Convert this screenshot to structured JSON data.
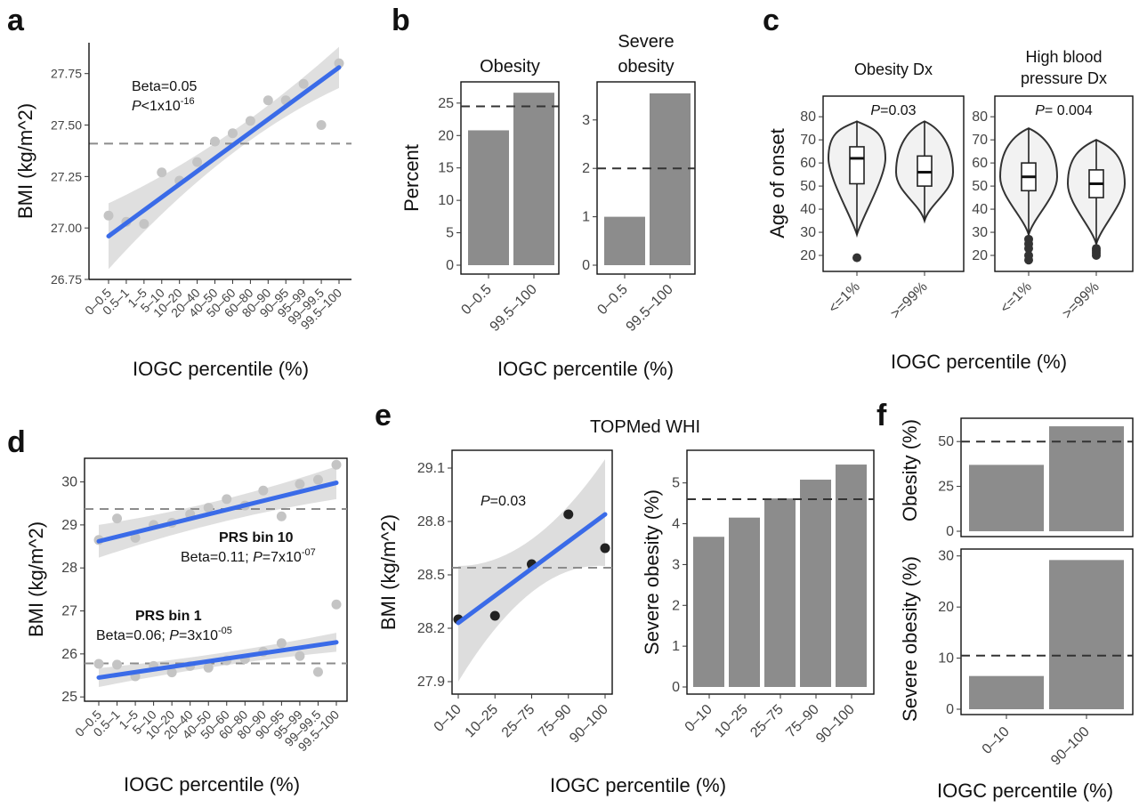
{
  "figure": {
    "panels": [
      "a",
      "b",
      "c",
      "d",
      "e",
      "f"
    ],
    "e_title": "TOPMed WHI",
    "xlabel": "IOGC percentile (%)"
  },
  "chart_data": [
    {
      "panel": "a",
      "type": "scatter",
      "xlabel": "IOGC percentile (%)",
      "ylabel": "BMI (kg/m^2)",
      "categories": [
        "0–0.5",
        "0.5–1",
        "1–5",
        "5–10",
        "10–20",
        "20–40",
        "40–50",
        "50–60",
        "60–80",
        "80–90",
        "90–95",
        "95–99",
        "99–99.5",
        "99.5–100"
      ],
      "values": [
        27.06,
        27.03,
        27.02,
        27.27,
        27.23,
        27.32,
        27.42,
        27.46,
        27.52,
        27.62,
        27.62,
        27.7,
        27.5,
        27.8
      ],
      "fit": [
        26.96,
        27.78
      ],
      "reference_line": 27.41,
      "ylim": [
        26.75,
        27.9
      ],
      "yticks": [
        26.75,
        27.0,
        27.25,
        27.5,
        27.75
      ],
      "annotation": {
        "beta": "Beta=0.05",
        "p_label": "P",
        "p_rest": "<1x10",
        "p_exp": "-16"
      }
    },
    {
      "panel": "b",
      "type": "bar",
      "ylabel": "Percent",
      "xlabel": "IOGC percentile (%)",
      "facets": [
        {
          "title": [
            "Obesity"
          ],
          "categories": [
            "0–0.5",
            "99.5–100"
          ],
          "values": [
            20.8,
            26.6
          ],
          "reference_line": 24.5,
          "ylim": [
            0,
            28
          ],
          "yticks": [
            0,
            5,
            10,
            15,
            20,
            25
          ]
        },
        {
          "title": [
            "Severe",
            "obesity"
          ],
          "categories": [
            "0–0.5",
            "99.5–100"
          ],
          "values": [
            1.0,
            3.55
          ],
          "reference_line": 2.0,
          "ylim": [
            0,
            3.75
          ],
          "yticks": [
            0,
            1,
            2,
            3
          ]
        }
      ]
    },
    {
      "panel": "c",
      "type": "violin",
      "ylabel": "Age of onset",
      "xlabel": "IOGC percentile (%)",
      "ylim": [
        15,
        87
      ],
      "yticks": [
        20,
        30,
        40,
        50,
        60,
        70,
        80
      ],
      "facets": [
        {
          "title": [
            "Obesity Dx"
          ],
          "p_label": "P",
          "p_value": "=0.03",
          "categories": [
            "<=1%",
            ">=99%"
          ],
          "groups": [
            {
              "q1": 51,
              "median": 62,
              "q3": 67,
              "whisker_low": 29,
              "whisker_high": 78,
              "outliers": [
                19
              ]
            },
            {
              "q1": 50,
              "median": 56,
              "q3": 63,
              "whisker_low": 35,
              "whisker_high": 78,
              "outliers": []
            }
          ]
        },
        {
          "title": [
            "High blood",
            "pressure Dx"
          ],
          "p_label": "P",
          "p_value": "= 0.004",
          "categories": [
            "<=1%",
            ">=99%"
          ],
          "groups": [
            {
              "q1": 48,
              "median": 54,
              "q3": 60,
              "whisker_low": 29,
              "whisker_high": 75,
              "outliers": [
                27,
                25,
                23,
                20,
                18
              ]
            },
            {
              "q1": 45,
              "median": 51,
              "q3": 57,
              "whisker_low": 25,
              "whisker_high": 70,
              "outliers": [
                23,
                22,
                21,
                20
              ]
            }
          ]
        }
      ]
    },
    {
      "panel": "d",
      "type": "scatter",
      "xlabel": "IOGC percentile (%)",
      "ylabel": "BMI (kg/m^2)",
      "categories": [
        "0–0.5",
        "0.5–1",
        "1–5",
        "5–10",
        "10–20",
        "20–40",
        "40–50",
        "50–60",
        "60–80",
        "80–90",
        "90–95",
        "95–99",
        "99–99.5",
        "99.5–100"
      ],
      "ylim": [
        24.9,
        30.55
      ],
      "yticks": [
        25,
        26,
        27,
        28,
        29,
        30
      ],
      "series": [
        {
          "name": "PRS bin 10",
          "values": [
            28.65,
            29.15,
            28.7,
            29.0,
            29.05,
            29.25,
            29.4,
            29.6,
            29.45,
            29.8,
            29.2,
            29.95,
            30.05,
            30.4
          ],
          "fit": [
            28.62,
            29.98
          ],
          "reference_line": 29.37,
          "annotation": {
            "beta": "Beta=0.11; ",
            "p_label": "P",
            "p_rest": "=7x10",
            "p_exp": "-07"
          }
        },
        {
          "name": "PRS bin 1",
          "values": [
            25.77,
            25.75,
            25.48,
            25.72,
            25.57,
            25.72,
            25.68,
            25.85,
            25.88,
            26.05,
            26.25,
            25.95,
            25.58,
            27.15
          ],
          "fit": [
            25.45,
            26.27
          ],
          "reference_line": 25.78,
          "annotation": {
            "beta": "Beta=0.06; ",
            "p_label": "P",
            "p_rest": "=3x10",
            "p_exp": "-05"
          }
        }
      ]
    },
    {
      "panel": "e-left",
      "type": "scatter",
      "xlabel": "IOGC percentile (%)",
      "ylabel": "BMI (kg/m^2)",
      "categories": [
        "0–10",
        "10–25",
        "25–75",
        "75–90",
        "90–100"
      ],
      "values": [
        28.25,
        28.27,
        28.56,
        28.84,
        28.65
      ],
      "fit": [
        28.23,
        28.84
      ],
      "reference_line": 28.54,
      "ylim": [
        27.83,
        29.2
      ],
      "yticks": [
        27.9,
        28.2,
        28.5,
        28.8,
        29.1
      ],
      "annotation": {
        "p_label": "P",
        "p_value": "=0.03"
      }
    },
    {
      "panel": "e-right",
      "type": "bar",
      "ylabel": "Severe obesity (%)",
      "categories": [
        "0–10",
        "10–25",
        "25–75",
        "75–90",
        "90–100"
      ],
      "values": [
        3.68,
        4.15,
        4.62,
        5.08,
        5.45
      ],
      "reference_line": 4.6,
      "ylim": [
        0,
        5.8
      ],
      "yticks": [
        0,
        1,
        2,
        3,
        4,
        5
      ]
    },
    {
      "panel": "f",
      "type": "bar",
      "xlabel": "IOGC percentile (%)",
      "categories": [
        "0–10",
        "90–100"
      ],
      "facets": [
        {
          "ylabel": "Obesity (%)",
          "values": [
            37,
            58.5
          ],
          "reference_line": 50,
          "ylim": [
            0,
            62
          ],
          "yticks": [
            0,
            25,
            50
          ]
        },
        {
          "ylabel": "Severe obesity (%)",
          "values": [
            6.5,
            29.2
          ],
          "reference_line": 10.5,
          "ylim": [
            0,
            31
          ],
          "yticks": [
            0,
            10,
            20,
            30
          ]
        }
      ]
    }
  ]
}
